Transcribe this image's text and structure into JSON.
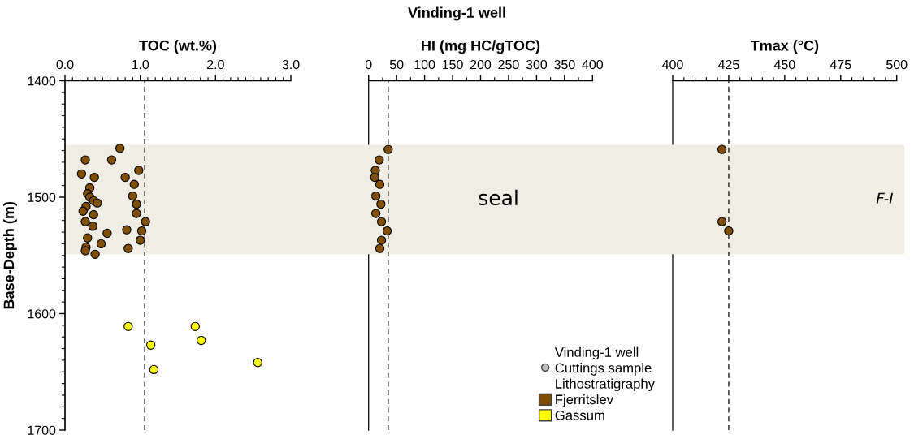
{
  "chart_data": [
    {
      "type": "scatter",
      "xlabel": "TOC (wt.%)",
      "ylabel": "Base-Depth (m)",
      "marker": "circle",
      "xlim": [
        0,
        3
      ],
      "xticks": [
        {
          "value": 0,
          "label": "0.0"
        },
        {
          "value": 0.1,
          "label": null
        },
        {
          "value": 0.2,
          "label": null
        },
        {
          "value": 0.3,
          "label": null
        },
        {
          "value": 0.4,
          "label": null
        },
        {
          "value": 0.5,
          "label": null
        },
        {
          "value": 0.6,
          "label": null
        },
        {
          "value": 0.7,
          "label": null
        },
        {
          "value": 0.8,
          "label": null
        },
        {
          "value": 0.9,
          "label": null
        },
        {
          "value": 1,
          "label": "1.0"
        },
        {
          "value": 1.1,
          "label": null
        },
        {
          "value": 1.2,
          "label": null
        },
        {
          "value": 1.3,
          "label": null
        },
        {
          "value": 1.4,
          "label": null
        },
        {
          "value": 1.5,
          "label": null
        },
        {
          "value": 1.6,
          "label": null
        },
        {
          "value": 1.7,
          "label": null
        },
        {
          "value": 1.8,
          "label": null
        },
        {
          "value": 1.9,
          "label": null
        },
        {
          "value": 2,
          "label": "2.0"
        },
        {
          "value": 2.1,
          "label": null
        },
        {
          "value": 2.2,
          "label": null
        },
        {
          "value": 2.3,
          "label": null
        },
        {
          "value": 2.4,
          "label": null
        },
        {
          "value": 2.5,
          "label": null
        },
        {
          "value": 2.6,
          "label": null
        },
        {
          "value": 2.7,
          "label": null
        },
        {
          "value": 2.8,
          "label": null
        },
        {
          "value": 2.9,
          "label": null
        },
        {
          "value": 3,
          "label": "3.0"
        }
      ],
      "ylim": [
        1700,
        1400
      ],
      "yticks": [
        1400,
        {
          "value": 1410,
          "label": null
        },
        {
          "value": 1420,
          "label": null
        },
        {
          "value": 1430,
          "label": null
        },
        {
          "value": 1440,
          "label": null
        },
        {
          "value": 1450,
          "label": null
        },
        {
          "value": 1460,
          "label": null
        },
        {
          "value": 1470,
          "label": null
        },
        {
          "value": 1480,
          "label": null
        },
        {
          "value": 1490,
          "label": null
        },
        1500,
        {
          "value": 1510,
          "label": null
        },
        {
          "value": 1520,
          "label": null
        },
        {
          "value": 1530,
          "label": null
        },
        {
          "value": 1540,
          "label": null
        },
        {
          "value": 1550,
          "label": null
        },
        {
          "value": 1560,
          "label": null
        },
        {
          "value": 1570,
          "label": null
        },
        {
          "value": 1580,
          "label": null
        },
        {
          "value": 1590,
          "label": null
        },
        1600,
        {
          "value": 1610,
          "label": null
        },
        {
          "value": 1620,
          "label": null
        },
        {
          "value": 1630,
          "label": null
        },
        {
          "value": 1640,
          "label": null
        },
        {
          "value": 1650,
          "label": null
        },
        {
          "value": 1660,
          "label": null
        },
        {
          "value": 1670,
          "label": null
        },
        {
          "value": 1680,
          "label": null
        },
        {
          "value": 1690,
          "label": null
        },
        1700
      ],
      "series": [
        {
          "name": "Fjerritslev",
          "color": "#7f4f00",
          "x": [
            0.73,
            0.27,
            0.62,
            0.98,
            0.22,
            0.39,
            0.8,
            0.92,
            0.33,
            0.3,
            0.9,
            0.33,
            0.38,
            0.43,
            0.95,
            0.28,
            0.24,
            0.95,
            0.38,
            0.27,
            1.07,
            0.37,
            0.82,
            1.02,
            0.56,
            0.3,
            1.0,
            0.48,
            0.28,
            0.84,
            0.27,
            0.4
          ],
          "values": [
            1458,
            1468,
            1468,
            1477,
            1480,
            1483,
            1483,
            1489,
            1492,
            1497,
            1499,
            1500,
            1503,
            1505,
            1506,
            1508,
            1512,
            1514,
            1515,
            1521,
            1521,
            1525,
            1528,
            1529,
            1531,
            1535,
            1537,
            1540,
            1543,
            1544,
            1546,
            1549
          ]
        },
        {
          "name": "Gassum",
          "color": "#ffff00",
          "x": [
            0.84,
            1.73,
            1.81,
            1.14,
            2.56,
            1.18
          ],
          "values": [
            1611,
            1611,
            1623,
            1627,
            1642,
            1648
          ]
        }
      ],
      "ref_lines": [
        {
          "axis": "x",
          "value": 1.06,
          "color": "#000000",
          "line_style": "dashed"
        }
      ],
      "bands": [
        {
          "axis": "y",
          "from": 1455,
          "to": 1549,
          "color": "#f0ede4"
        }
      ],
      "legend": "bottom right",
      "legend_title": "Lithostratigraphy",
      "annotations": [
        "Vinding-1 well",
        "Cuttings sample"
      ]
    },
    {
      "type": "scatter",
      "title": "Vinding-1 well",
      "xlabel": "HI (mg HC/gTOC)",
      "marker": "circle",
      "xlim": [
        0,
        400
      ],
      "xticks": [
        0,
        {
          "value": 25,
          "label": null
        },
        50,
        {
          "value": 75,
          "label": null
        },
        100,
        {
          "value": 125,
          "label": null
        },
        150,
        {
          "value": 175,
          "label": null
        },
        200,
        {
          "value": 225,
          "label": null
        },
        250,
        {
          "value": 275,
          "label": null
        },
        300,
        {
          "value": 325,
          "label": null
        },
        350,
        {
          "value": 375,
          "label": null
        },
        400
      ],
      "ylim": [
        1700,
        1400
      ],
      "tick_labels": "x",
      "series": [
        {
          "color": "#7f4f00",
          "x": [
            35,
            19,
            12,
            11,
            20,
            13,
            22,
            13,
            23,
            33,
            23,
            20
          ],
          "values": [
            1459,
            1468,
            1477,
            1483,
            1489,
            1499,
            1506,
            1514,
            1521,
            1529,
            1537,
            1544
          ]
        }
      ],
      "ref_lines": [
        {
          "axis": "x",
          "value": 35,
          "color": "#333333",
          "line_style": "dashed"
        }
      ],
      "bands": [
        {
          "axis": "y",
          "from": 1455,
          "to": 1549,
          "label": "seal",
          "color": "#f0ede4"
        }
      ]
    },
    {
      "type": "scatter",
      "xlabel": "Tmax (°C)",
      "marker": "circle",
      "xlim": [
        400,
        500
      ],
      "xticks": [
        400,
        {
          "value": 405,
          "label": null
        },
        {
          "value": 410,
          "label": null
        },
        {
          "value": 415,
          "label": null
        },
        {
          "value": 420,
          "label": null
        },
        425,
        {
          "value": 430,
          "label": null
        },
        {
          "value": 435,
          "label": null
        },
        {
          "value": 440,
          "label": null
        },
        {
          "value": 445,
          "label": null
        },
        450,
        {
          "value": 455,
          "label": null
        },
        {
          "value": 460,
          "label": null
        },
        {
          "value": 465,
          "label": null
        },
        {
          "value": 470,
          "label": null
        },
        475,
        {
          "value": 480,
          "label": null
        },
        {
          "value": 485,
          "label": null
        },
        {
          "value": 490,
          "label": null
        },
        {
          "value": 495,
          "label": null
        },
        500
      ],
      "ylim": [
        1700,
        1400
      ],
      "tick_labels": "x",
      "series": [
        {
          "color": "#7f4f00",
          "x": [
            422,
            422,
            425
          ],
          "values": [
            1459,
            1521,
            1529
          ]
        }
      ],
      "ref_lines": [
        {
          "axis": "x",
          "value": 425,
          "color": "#333333",
          "line_style": "dashed"
        }
      ],
      "bands": [
        {
          "axis": "y",
          "from": 1455,
          "to": 1549,
          "color": "#f0ede4"
        }
      ],
      "annotations": [
        "F-I"
      ]
    }
  ]
}
